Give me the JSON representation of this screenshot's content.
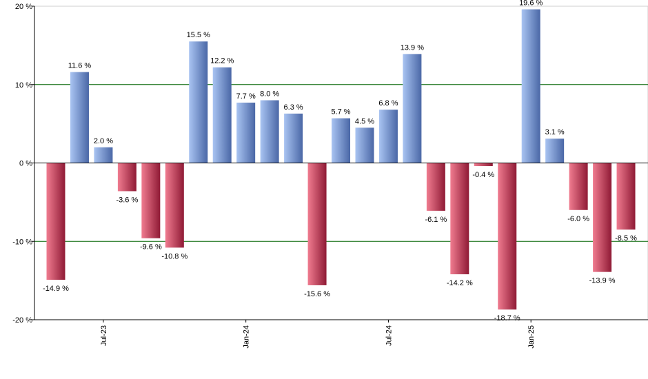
{
  "chart_data": {
    "type": "bar",
    "title": "",
    "xlabel": "",
    "ylabel": "",
    "ylim": [
      -20,
      20
    ],
    "y_ticks": [
      {
        "value": 20,
        "label": "20 %"
      },
      {
        "value": 10,
        "label": "10 %"
      },
      {
        "value": 0,
        "label": "0 %"
      },
      {
        "value": -10,
        "label": "-10 %"
      },
      {
        "value": -20,
        "label": "-20 %"
      }
    ],
    "gridlines_at": [
      10,
      -10
    ],
    "x_ticks": [
      {
        "category_index": 2,
        "label": "Jul-23"
      },
      {
        "category_index": 8,
        "label": "Jan-24"
      },
      {
        "category_index": 14,
        "label": "Jul-24"
      },
      {
        "category_index": 20,
        "label": "Jan-25"
      }
    ],
    "values": [
      -14.9,
      11.6,
      2.0,
      -3.6,
      -9.6,
      -10.8,
      15.5,
      12.2,
      7.7,
      8.0,
      6.3,
      -15.6,
      5.7,
      4.5,
      6.8,
      13.9,
      -6.1,
      -14.2,
      -0.4,
      -18.7,
      19.6,
      3.1,
      -6.0,
      -13.9,
      -8.5
    ],
    "value_labels": [
      "-14.9 %",
      "11.6 %",
      "2.0 %",
      "-3.6 %",
      "-9.6 %",
      "-10.8 %",
      "15.5 %",
      "12.2 %",
      "7.7 %",
      "8.0 %",
      "6.3 %",
      "-15.6 %",
      "5.7 %",
      "4.5 %",
      "6.8 %",
      "13.9 %",
      "-6.1 %",
      "-14.2 %",
      "-0.4 %",
      "-18.7 %",
      "19.6 %",
      "3.1 %",
      "-6.0 %",
      "-13.9 %",
      "-8.5 %"
    ],
    "colors": {
      "positive_light": "#a9c4f2",
      "positive_dark": "#4a67a6",
      "negative_light": "#f07c90",
      "negative_dark": "#8f1a35",
      "grid": "#006400",
      "axis": "#000000"
    }
  }
}
